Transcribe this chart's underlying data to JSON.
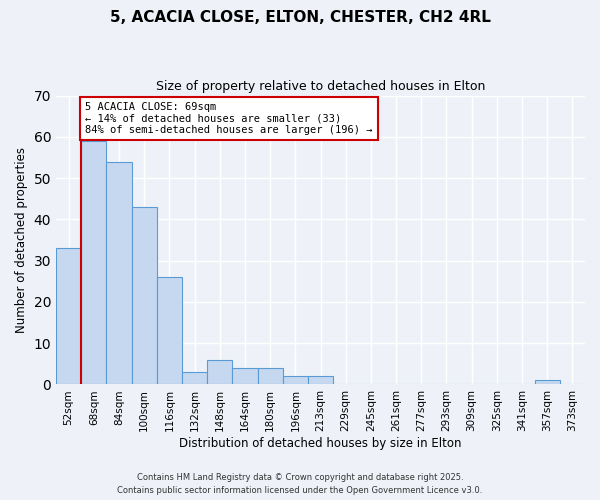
{
  "title": "5, ACACIA CLOSE, ELTON, CHESTER, CH2 4RL",
  "subtitle": "Size of property relative to detached houses in Elton",
  "xlabel": "Distribution of detached houses by size in Elton",
  "ylabel": "Number of detached properties",
  "bin_labels": [
    "52sqm",
    "68sqm",
    "84sqm",
    "100sqm",
    "116sqm",
    "132sqm",
    "148sqm",
    "164sqm",
    "180sqm",
    "196sqm",
    "213sqm",
    "229sqm",
    "245sqm",
    "261sqm",
    "277sqm",
    "293sqm",
    "309sqm",
    "325sqm",
    "341sqm",
    "357sqm",
    "373sqm"
  ],
  "bin_counts": [
    33,
    59,
    54,
    43,
    26,
    3,
    6,
    4,
    4,
    2,
    2,
    0,
    0,
    0,
    0,
    0,
    0,
    0,
    0,
    1,
    0
  ],
  "bar_color": "#c5d8f0",
  "bar_edge_color": "#5b9bd5",
  "property_line_x": 1,
  "property_line_color": "#cc0000",
  "ylim": [
    0,
    70
  ],
  "yticks": [
    0,
    10,
    20,
    30,
    40,
    50,
    60,
    70
  ],
  "annotation_text": "5 ACACIA CLOSE: 69sqm\n← 14% of detached houses are smaller (33)\n84% of semi-detached houses are larger (196) →",
  "annotation_box_color": "#ffffff",
  "annotation_box_edge": "#cc0000",
  "footer1": "Contains HM Land Registry data © Crown copyright and database right 2025.",
  "footer2": "Contains public sector information licensed under the Open Government Licence v3.0.",
  "background_color": "#eef2f8"
}
